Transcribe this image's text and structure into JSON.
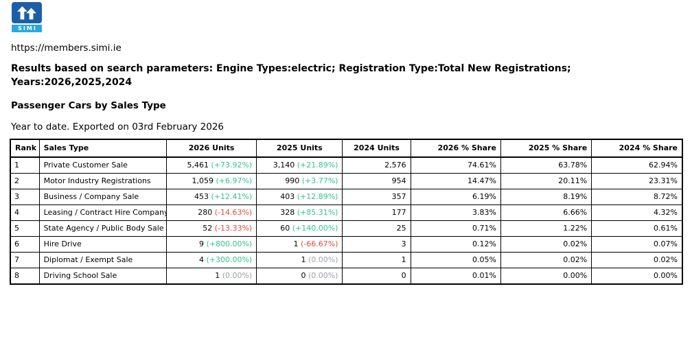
{
  "logo": {
    "text": "SIMI",
    "mark_color": "#1d5fa7",
    "bar_color": "#29a8e0"
  },
  "page": {
    "url": "https://members.simi.ie",
    "search_summary_line1": "Results based on search parameters: Engine Types:electric; Registration Type:Total New Registrations;",
    "search_summary_line2": "Years:2026,2025,2024",
    "section_title": "Passenger Cars by Sales Type",
    "export_note": "Year to date. Exported on 03rd February 2026"
  },
  "colors": {
    "positive": "#2fc490",
    "negative": "#e6483d",
    "neutral": "#9aa0a6"
  },
  "table": {
    "columns": [
      "Rank",
      "Sales Type",
      "2026 Units",
      "2025 Units",
      "2024 Units",
      "2026 % Share",
      "2025 % Share",
      "2024 % Share"
    ],
    "rows": [
      {
        "rank": "1",
        "sales_type": "Private Customer Sale",
        "units_2026": "5,461",
        "change_2026": "(+73.92%)",
        "units_2025": "3,140",
        "change_2025": "(+21.89%)",
        "units_2024": "2,576",
        "share_2026": "74.61%",
        "share_2025": "63.78%",
        "share_2024": "62.94%"
      },
      {
        "rank": "2",
        "sales_type": "Motor Industry Registrations",
        "units_2026": "1,059",
        "change_2026": "(+6.97%)",
        "units_2025": "990",
        "change_2025": "(+3.77%)",
        "units_2024": "954",
        "share_2026": "14.47%",
        "share_2025": "20.11%",
        "share_2024": "23.31%"
      },
      {
        "rank": "3",
        "sales_type": "Business / Company Sale",
        "units_2026": "453",
        "change_2026": "(+12.41%)",
        "units_2025": "403",
        "change_2025": "(+12.89%)",
        "units_2024": "357",
        "share_2026": "6.19%",
        "share_2025": "8.19%",
        "share_2024": "8.72%"
      },
      {
        "rank": "4",
        "sales_type": "Leasing / Contract Hire Company",
        "units_2026": "280",
        "change_2026": "(-14.63%)",
        "units_2025": "328",
        "change_2025": "(+85.31%)",
        "units_2024": "177",
        "share_2026": "3.83%",
        "share_2025": "6.66%",
        "share_2024": "4.32%"
      },
      {
        "rank": "5",
        "sales_type": "State Agency / Public Body Sale",
        "units_2026": "52",
        "change_2026": "(-13.33%)",
        "units_2025": "60",
        "change_2025": "(+140.00%)",
        "units_2024": "25",
        "share_2026": "0.71%",
        "share_2025": "1.22%",
        "share_2024": "0.61%"
      },
      {
        "rank": "6",
        "sales_type": "Hire Drive",
        "units_2026": "9",
        "change_2026": "(+800.00%)",
        "units_2025": "1",
        "change_2025": "(-66.67%)",
        "units_2024": "3",
        "share_2026": "0.12%",
        "share_2025": "0.02%",
        "share_2024": "0.07%"
      },
      {
        "rank": "7",
        "sales_type": "Diplomat / Exempt Sale",
        "units_2026": "4",
        "change_2026": "(+300.00%)",
        "units_2025": "1",
        "change_2025": "(0.00%)",
        "units_2024": "1",
        "share_2026": "0.05%",
        "share_2025": "0.02%",
        "share_2024": "0.02%"
      },
      {
        "rank": "8",
        "sales_type": "Driving School Sale",
        "units_2026": "1",
        "change_2026": "(0.00%)",
        "units_2025": "0",
        "change_2025": "(0.00%)",
        "units_2024": "0",
        "share_2026": "0.01%",
        "share_2025": "0.00%",
        "share_2024": "0.00%"
      }
    ]
  }
}
